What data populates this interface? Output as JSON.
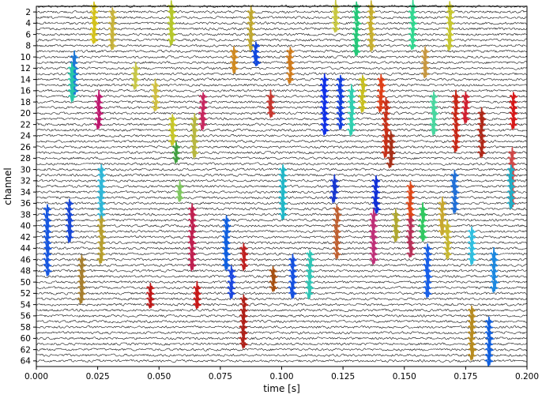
{
  "chart_data": {
    "type": "line",
    "xlabel": "time [s]",
    "ylabel": "channel",
    "xlim": [
      0.0,
      0.2
    ],
    "ylim": [
      65,
      1
    ],
    "num_channels": 64,
    "x_ticks": [
      "0.000",
      "0.025",
      "0.050",
      "0.075",
      "0.100",
      "0.125",
      "0.150",
      "0.175",
      "0.200"
    ],
    "y_ticks": [
      "2",
      "4",
      "6",
      "8",
      "10",
      "12",
      "14",
      "16",
      "18",
      "20",
      "22",
      "24",
      "26",
      "28",
      "30",
      "32",
      "34",
      "36",
      "38",
      "40",
      "42",
      "44",
      "46",
      "48",
      "50",
      "52",
      "54",
      "56",
      "58",
      "60",
      "62",
      "64"
    ],
    "trace_color": "#000000",
    "grid": false,
    "spike_events": [
      {
        "t": 0.0235,
        "channels": [
          1,
          2,
          3,
          4,
          5,
          6,
          7
        ],
        "color": "#d4c21a"
      },
      {
        "t": 0.031,
        "channels": [
          2,
          3,
          4,
          5,
          6,
          7,
          8
        ],
        "color": "#c8b43c"
      },
      {
        "t": 0.055,
        "channels": [
          1,
          2,
          3,
          4,
          5,
          6,
          7
        ],
        "color": "#b6c82c"
      },
      {
        "t": 0.0875,
        "channels": [
          2,
          3,
          4,
          5,
          6,
          7,
          8
        ],
        "color": "#c0a830"
      },
      {
        "t": 0.122,
        "channels": [
          1,
          2,
          3,
          4,
          5
        ],
        "color": "#c8c840"
      },
      {
        "t": 0.1305,
        "channels": [
          1,
          2,
          3,
          4,
          5,
          6,
          7,
          8,
          9
        ],
        "color": "#24c878"
      },
      {
        "t": 0.1365,
        "channels": [
          1,
          2,
          3,
          4,
          5,
          6,
          7,
          8
        ],
        "color": "#c8b030"
      },
      {
        "t": 0.1535,
        "channels": [
          1,
          2,
          3,
          4,
          5,
          6,
          7,
          8
        ],
        "color": "#30d890"
      },
      {
        "t": 0.1685,
        "channels": [
          1,
          2,
          3,
          4,
          5,
          6,
          7,
          8
        ],
        "color": "#c8c830"
      },
      {
        "t": 0.0895,
        "channels": [
          8,
          9,
          10,
          11
        ],
        "color": "#1048e0"
      },
      {
        "t": 0.0805,
        "channels": [
          9,
          10,
          11,
          12
        ],
        "color": "#d08a20"
      },
      {
        "t": 0.1035,
        "channels": [
          9,
          10,
          11,
          12,
          13,
          14
        ],
        "color": "#d07c1c"
      },
      {
        "t": 0.0155,
        "channels": [
          10,
          11,
          12,
          13,
          14,
          15,
          16
        ],
        "color": "#1c78d8"
      },
      {
        "t": 0.0145,
        "channels": [
          12,
          13,
          14,
          15,
          16,
          17
        ],
        "color": "#28c8a8"
      },
      {
        "t": 0.1585,
        "channels": [
          9,
          10,
          11,
          12,
          13
        ],
        "color": "#c89840"
      },
      {
        "t": 0.0405,
        "channels": [
          12,
          13,
          14,
          15
        ],
        "color": "#c8c848"
      },
      {
        "t": 0.0485,
        "channels": [
          15,
          16,
          17,
          18,
          19
        ],
        "color": "#d0c040"
      },
      {
        "t": 0.0255,
        "channels": [
          17,
          18,
          19,
          20,
          21,
          22
        ],
        "color": "#c01870"
      },
      {
        "t": 0.068,
        "channels": [
          17,
          18,
          19,
          20,
          21,
          22
        ],
        "color": "#c82860"
      },
      {
        "t": 0.0955,
        "channels": [
          17,
          18,
          19,
          20
        ],
        "color": "#c83830"
      },
      {
        "t": 0.1175,
        "channels": [
          14,
          15,
          16,
          17,
          18,
          19,
          20,
          21,
          22,
          23
        ],
        "color": "#1030e8"
      },
      {
        "t": 0.124,
        "channels": [
          14,
          15,
          16,
          17,
          18,
          19,
          20,
          21,
          22
        ],
        "color": "#1440e0"
      },
      {
        "t": 0.1285,
        "channels": [
          16,
          17,
          18,
          19,
          20,
          21,
          22,
          23
        ],
        "color": "#30d0b0"
      },
      {
        "t": 0.133,
        "channels": [
          14,
          15,
          16,
          17,
          18,
          19
        ],
        "color": "#c8c020"
      },
      {
        "t": 0.1405,
        "channels": [
          14,
          15,
          16,
          17,
          18,
          19
        ],
        "color": "#e04018"
      },
      {
        "t": 0.1425,
        "channels": [
          18,
          19,
          20,
          21,
          22,
          23,
          24,
          25,
          26,
          27
        ],
        "color": "#c83018"
      },
      {
        "t": 0.162,
        "channels": [
          17,
          18,
          19,
          20,
          21,
          22,
          23
        ],
        "color": "#48d8a0"
      },
      {
        "t": 0.171,
        "channels": [
          17,
          18,
          19,
          20,
          21,
          22,
          23,
          24,
          25,
          26
        ],
        "color": "#c82818"
      },
      {
        "t": 0.175,
        "channels": [
          17,
          18,
          19,
          20,
          21
        ],
        "color": "#d02030"
      },
      {
        "t": 0.1815,
        "channels": [
          20,
          21,
          22,
          23,
          24,
          25,
          26,
          27
        ],
        "color": "#b02818"
      },
      {
        "t": 0.1945,
        "channels": [
          17,
          18,
          19,
          20,
          21,
          22
        ],
        "color": "#d81818"
      },
      {
        "t": 0.0555,
        "channels": [
          21,
          22,
          23,
          24,
          25
        ],
        "color": "#c8c828"
      },
      {
        "t": 0.0645,
        "channels": [
          21,
          22,
          23,
          24,
          25,
          26,
          27
        ],
        "color": "#b8b840"
      },
      {
        "t": 0.057,
        "channels": [
          26,
          27,
          28
        ],
        "color": "#40a040"
      },
      {
        "t": 0.1445,
        "channels": [
          24,
          25,
          26,
          27,
          28,
          29
        ],
        "color": "#a83018"
      },
      {
        "t": 0.194,
        "channels": [
          27,
          28,
          29,
          30,
          31,
          32,
          33,
          34,
          35,
          36
        ],
        "color": "#d04848"
      },
      {
        "t": 0.1935,
        "channels": [
          30,
          31,
          32,
          33,
          34,
          35,
          36
        ],
        "color": "#20b0c8"
      },
      {
        "t": 0.1005,
        "channels": [
          30,
          31,
          32,
          33,
          34,
          35,
          36,
          37,
          38
        ],
        "color": "#20b8c8"
      },
      {
        "t": 0.0265,
        "channels": [
          30,
          31,
          32,
          33,
          34,
          35,
          36,
          37,
          38
        ],
        "color": "#30b8d8"
      },
      {
        "t": 0.0585,
        "channels": [
          33,
          34,
          35
        ],
        "color": "#80c860"
      },
      {
        "t": 0.1215,
        "channels": [
          32,
          33,
          34,
          35
        ],
        "color": "#1838d0"
      },
      {
        "t": 0.1385,
        "channels": [
          32,
          33,
          34,
          35,
          36,
          37
        ],
        "color": "#1030d8"
      },
      {
        "t": 0.1525,
        "channels": [
          33,
          34,
          35,
          36,
          37,
          38,
          39
        ],
        "color": "#e04818"
      },
      {
        "t": 0.1575,
        "channels": [
          37,
          38,
          39,
          40,
          41,
          42
        ],
        "color": "#30c860"
      },
      {
        "t": 0.1655,
        "channels": [
          36,
          37,
          38,
          39,
          40,
          41
        ],
        "color": "#c8a830"
      },
      {
        "t": 0.1705,
        "channels": [
          31,
          32,
          33,
          34,
          35,
          36,
          37
        ],
        "color": "#2070d8"
      },
      {
        "t": 0.0045,
        "channels": [
          37,
          38,
          39,
          40,
          41,
          42,
          43,
          44,
          45,
          46,
          47,
          48
        ],
        "color": "#1858e0"
      },
      {
        "t": 0.0135,
        "channels": [
          36,
          37,
          38,
          39,
          40,
          41,
          42
        ],
        "color": "#1848d8"
      },
      {
        "t": 0.0265,
        "channels": [
          39,
          40,
          41,
          42,
          43,
          44,
          45,
          46
        ],
        "color": "#b8a030"
      },
      {
        "t": 0.0635,
        "channels": [
          37,
          38,
          39,
          40,
          41,
          42,
          43,
          44,
          45,
          46,
          47
        ],
        "color": "#c02050"
      },
      {
        "t": 0.0775,
        "channels": [
          39,
          40,
          41,
          42,
          43,
          44,
          45,
          46,
          47
        ],
        "color": "#1060e0"
      },
      {
        "t": 0.1225,
        "channels": [
          37,
          38,
          39,
          40,
          41,
          42,
          43,
          44,
          45
        ],
        "color": "#c06030"
      },
      {
        "t": 0.1375,
        "channels": [
          38,
          39,
          40,
          41,
          42,
          43,
          44,
          45,
          46
        ],
        "color": "#c03078"
      },
      {
        "t": 0.1465,
        "channels": [
          38,
          39,
          40,
          41,
          42
        ],
        "color": "#b0a830"
      },
      {
        "t": 0.1525,
        "channels": [
          39,
          40,
          41,
          42,
          43,
          44,
          45
        ],
        "color": "#b83058"
      },
      {
        "t": 0.1595,
        "channels": [
          44,
          45,
          46,
          47,
          48,
          49,
          50,
          51,
          52
        ],
        "color": "#1860e8"
      },
      {
        "t": 0.1675,
        "channels": [
          40,
          41,
          42,
          43,
          44,
          45
        ],
        "color": "#c8b830"
      },
      {
        "t": 0.1775,
        "channels": [
          41,
          42,
          43,
          44,
          45,
          46
        ],
        "color": "#30c0e0"
      },
      {
        "t": 0.1865,
        "channels": [
          45,
          46,
          47,
          48,
          49,
          50,
          51
        ],
        "color": "#1c88e0"
      },
      {
        "t": 0.0845,
        "channels": [
          44,
          45,
          46,
          47
        ],
        "color": "#c02020"
      },
      {
        "t": 0.1045,
        "channels": [
          46,
          47,
          48,
          49,
          50,
          51,
          52
        ],
        "color": "#1450e0"
      },
      {
        "t": 0.1115,
        "channels": [
          45,
          46,
          47,
          48,
          49,
          50,
          51,
          52
        ],
        "color": "#30c8b8"
      },
      {
        "t": 0.0185,
        "channels": [
          46,
          47,
          48,
          49,
          50,
          51,
          52,
          53
        ],
        "color": "#a88030"
      },
      {
        "t": 0.0965,
        "channels": [
          48,
          49,
          50,
          51
        ],
        "color": "#a85010"
      },
      {
        "t": 0.0795,
        "channels": [
          48,
          49,
          50,
          51,
          52
        ],
        "color": "#1c48e0"
      },
      {
        "t": 0.0465,
        "channels": [
          51,
          52,
          53,
          54
        ],
        "color": "#c01818"
      },
      {
        "t": 0.0655,
        "channels": [
          51,
          52,
          53,
          54
        ],
        "color": "#c81818"
      },
      {
        "t": 0.0845,
        "channels": [
          53,
          54,
          55,
          56,
          57,
          58,
          59,
          60,
          61
        ],
        "color": "#b02018"
      },
      {
        "t": 0.1775,
        "channels": [
          55,
          56,
          57,
          58,
          59,
          60,
          61,
          62,
          63
        ],
        "color": "#b88c20"
      },
      {
        "t": 0.1845,
        "channels": [
          57,
          58,
          59,
          60,
          61,
          62,
          63,
          64
        ],
        "color": "#1060e0"
      }
    ]
  }
}
